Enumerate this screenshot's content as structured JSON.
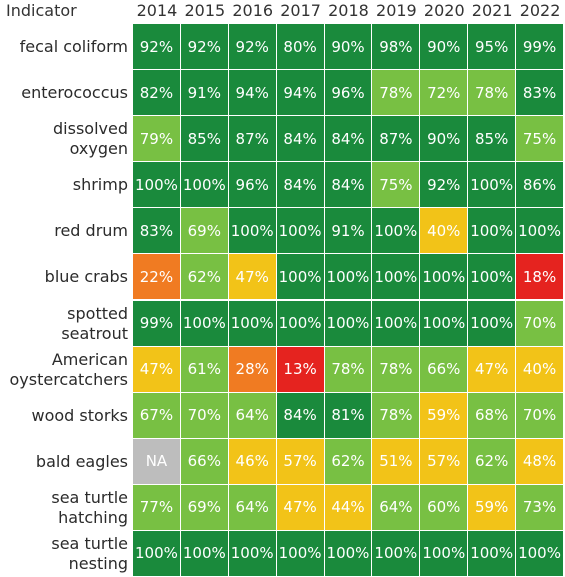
{
  "chart_data": {
    "type": "heatmap",
    "corner_label": "Indicator",
    "columns": [
      "2014",
      "2015",
      "2016",
      "2017",
      "2018",
      "2019",
      "2020",
      "2021",
      "2022"
    ],
    "rows": [
      {
        "label": "fecal coliform",
        "values": [
          "92%",
          "92%",
          "92%",
          "80%",
          "90%",
          "98%",
          "90%",
          "95%",
          "99%"
        ],
        "colors": [
          "#1a8a3c",
          "#1a8a3c",
          "#1a8a3c",
          "#1a8a3c",
          "#1a8a3c",
          "#1a8a3c",
          "#1a8a3c",
          "#1a8a3c",
          "#1a8a3c"
        ]
      },
      {
        "label": "enterococcus",
        "values": [
          "82%",
          "91%",
          "94%",
          "94%",
          "96%",
          "78%",
          "72%",
          "78%",
          "83%"
        ],
        "colors": [
          "#1a8a3c",
          "#1a8a3c",
          "#1a8a3c",
          "#1a8a3c",
          "#1a8a3c",
          "#78c043",
          "#78c043",
          "#78c043",
          "#1a8a3c"
        ]
      },
      {
        "label": "dissolved\noxygen",
        "values": [
          "79%",
          "85%",
          "87%",
          "84%",
          "84%",
          "87%",
          "90%",
          "85%",
          "75%"
        ],
        "colors": [
          "#78c043",
          "#1a8a3c",
          "#1a8a3c",
          "#1a8a3c",
          "#1a8a3c",
          "#1a8a3c",
          "#1a8a3c",
          "#1a8a3c",
          "#78c043"
        ]
      },
      {
        "label": "shrimp",
        "values": [
          "100%",
          "100%",
          "96%",
          "84%",
          "84%",
          "75%",
          "92%",
          "100%",
          "86%"
        ],
        "colors": [
          "#1a8a3c",
          "#1a8a3c",
          "#1a8a3c",
          "#1a8a3c",
          "#1a8a3c",
          "#78c043",
          "#1a8a3c",
          "#1a8a3c",
          "#1a8a3c"
        ]
      },
      {
        "label": "red drum",
        "values": [
          "83%",
          "69%",
          "100%",
          "100%",
          "91%",
          "100%",
          "40%",
          "100%",
          "100%"
        ],
        "colors": [
          "#1a8a3c",
          "#78c043",
          "#1a8a3c",
          "#1a8a3c",
          "#1a8a3c",
          "#1a8a3c",
          "#f2c318",
          "#1a8a3c",
          "#1a8a3c"
        ]
      },
      {
        "label": "blue crabs",
        "values": [
          "22%",
          "62%",
          "47%",
          "100%",
          "100%",
          "100%",
          "100%",
          "100%",
          "18%"
        ],
        "colors": [
          "#f07b22",
          "#78c043",
          "#f2c318",
          "#1a8a3c",
          "#1a8a3c",
          "#1a8a3c",
          "#1a8a3c",
          "#1a8a3c",
          "#e5231f"
        ]
      },
      {
        "label": "spotted\nseatrout",
        "values": [
          "99%",
          "100%",
          "100%",
          "100%",
          "100%",
          "100%",
          "100%",
          "100%",
          "70%"
        ],
        "colors": [
          "#1a8a3c",
          "#1a8a3c",
          "#1a8a3c",
          "#1a8a3c",
          "#1a8a3c",
          "#1a8a3c",
          "#1a8a3c",
          "#1a8a3c",
          "#78c043"
        ]
      },
      {
        "label": "American\noystercatchers",
        "values": [
          "47%",
          "61%",
          "28%",
          "13%",
          "78%",
          "78%",
          "66%",
          "47%",
          "40%"
        ],
        "colors": [
          "#f2c318",
          "#78c043",
          "#f07b22",
          "#e5231f",
          "#78c043",
          "#78c043",
          "#78c043",
          "#f2c318",
          "#f2c318"
        ]
      },
      {
        "label": "wood storks",
        "values": [
          "67%",
          "70%",
          "64%",
          "84%",
          "81%",
          "78%",
          "59%",
          "68%",
          "70%"
        ],
        "colors": [
          "#78c043",
          "#78c043",
          "#78c043",
          "#1a8a3c",
          "#1a8a3c",
          "#78c043",
          "#f2c318",
          "#78c043",
          "#78c043"
        ]
      },
      {
        "label": "bald eagles",
        "values": [
          "NA",
          "66%",
          "46%",
          "57%",
          "62%",
          "51%",
          "57%",
          "62%",
          "48%"
        ],
        "colors": [
          "#bdbdbd",
          "#78c043",
          "#f2c318",
          "#f2c318",
          "#78c043",
          "#f2c318",
          "#f2c318",
          "#78c043",
          "#f2c318"
        ]
      },
      {
        "label": "sea turtle\nhatching",
        "values": [
          "77%",
          "69%",
          "64%",
          "47%",
          "44%",
          "64%",
          "60%",
          "59%",
          "73%"
        ],
        "colors": [
          "#78c043",
          "#78c043",
          "#78c043",
          "#f2c318",
          "#f2c318",
          "#78c043",
          "#78c043",
          "#f2c318",
          "#78c043"
        ]
      },
      {
        "label": "sea turtle\nnesting",
        "values": [
          "100%",
          "100%",
          "100%",
          "100%",
          "100%",
          "100%",
          "100%",
          "100%",
          "100%"
        ],
        "colors": [
          "#1a8a3c",
          "#1a8a3c",
          "#1a8a3c",
          "#1a8a3c",
          "#1a8a3c",
          "#1a8a3c",
          "#1a8a3c",
          "#1a8a3c",
          "#1a8a3c"
        ]
      }
    ]
  }
}
